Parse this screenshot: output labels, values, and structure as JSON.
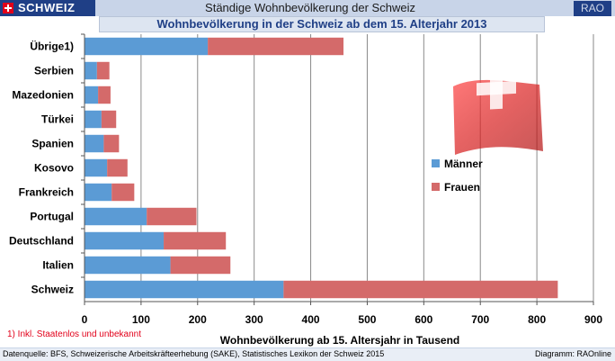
{
  "header": {
    "brand": "SCHWEIZ",
    "title": "Ständige Wohnbevölkerung der Schweiz",
    "code": "RAO"
  },
  "chart_data": {
    "type": "bar",
    "orientation": "horizontal",
    "stacked": true,
    "title": "Wohnbevölkerung in der Schweiz ab dem 15. Alterjahr 2013",
    "xlabel": "Wohnbevölkerung ab 15. Altersjahr  in Tausend",
    "ylabel": "",
    "xlim": [
      0,
      900
    ],
    "xticks": [
      0,
      100,
      200,
      300,
      400,
      500,
      600,
      700,
      800,
      900
    ],
    "grid": "vertical",
    "legend_position": "right",
    "categories": [
      "Übrige1)",
      "Serbien",
      "Mazedonien",
      "Türkei",
      "Spanien",
      "Kosovo",
      "Frankreich",
      "Portugal",
      "Deutschland",
      "Italien",
      "Schweiz"
    ],
    "series": [
      {
        "name": "Männer",
        "color": "#5b9bd5",
        "values": [
          218,
          22,
          24,
          30,
          34,
          40,
          48,
          110,
          140,
          152,
          352
        ]
      },
      {
        "name": "Frauen",
        "color": "#d46a6a",
        "values": [
          240,
          22,
          22,
          26,
          27,
          36,
          40,
          88,
          110,
          106,
          485
        ]
      }
    ]
  },
  "footnote": "1) Inkl. Staatenlos und unbekannt",
  "footer": {
    "source": "Datenquelle: BFS, Schweizerische Arbeitskräfteerhebung (SAKE), Statistisches Lexikon der Schweiz 2015",
    "credit": "Diagramm:  RAOnline"
  },
  "decorations": {
    "flag_icon": "swiss-flag-icon",
    "brand_icon": "swiss-cross-icon"
  }
}
